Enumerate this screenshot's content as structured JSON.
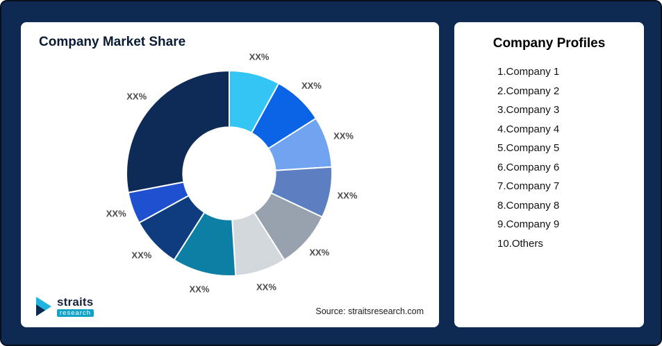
{
  "left_card": {
    "title": "Company Market Share",
    "source": "Source: straitsresearch.com",
    "logo": {
      "name": "straits",
      "sub": "research"
    }
  },
  "profiles": {
    "title": "Company Profiles",
    "items": [
      "1.Company 1",
      "2.Company 2",
      "3.Company 3",
      "4.Company 4",
      "5.Company 5",
      "6.Company 6",
      "7.Company 7",
      "8.Company 8",
      "9.Company 9",
      "10.Others"
    ]
  },
  "colors": {
    "background": "#0E2A52",
    "card": "#FFFFFF",
    "title_text": "#0B1B33",
    "slice_label": "#4A4A4A",
    "logo_accent": "#0FA3C8"
  },
  "chart_data": {
    "type": "pie",
    "donut": true,
    "title": "Company Market Share",
    "inner_radius_ratio": 0.45,
    "legend": "none",
    "start_angle_deg": 0,
    "direction": "clockwise",
    "note": "Percent values are masked in the image as XX%; numeric values below are estimated from arc angles.",
    "segments": [
      {
        "name": "Company 1",
        "label": "XX%",
        "value": 8,
        "color": "#33C5F3"
      },
      {
        "name": "Company 2",
        "label": "XX%",
        "value": 8,
        "color": "#0B63E5"
      },
      {
        "name": "Company 3",
        "label": "XX%",
        "value": 8,
        "color": "#70A4F0"
      },
      {
        "name": "Company 4",
        "label": "XX%",
        "value": 8,
        "color": "#5C7FC2"
      },
      {
        "name": "Company 5",
        "label": "XX%",
        "value": 9,
        "color": "#98A2AE"
      },
      {
        "name": "Company 6",
        "label": "XX%",
        "value": 8,
        "color": "#D3D8DD"
      },
      {
        "name": "Company 7",
        "label": "XX%",
        "value": 10,
        "color": "#0E7FA4"
      },
      {
        "name": "Company 8",
        "label": "XX%",
        "value": 8,
        "color": "#0F3C7E"
      },
      {
        "name": "Company 9",
        "label": "XX%",
        "value": 5,
        "color": "#1E50D0"
      },
      {
        "name": "Others",
        "label": "XX%",
        "value": 28,
        "color": "#0E2A56"
      }
    ]
  }
}
